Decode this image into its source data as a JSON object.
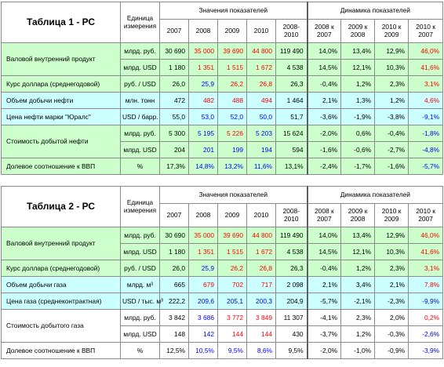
{
  "header": {
    "unit_label": "Единица измерения",
    "values_label": "Значения показателей",
    "dynamics_label": "Динамика показателей",
    "years": [
      "2007",
      "2008",
      "2009",
      "2010",
      "2008-\n2010"
    ],
    "dyn_periods": [
      "2008 к\n2007",
      "2009 к\n2008",
      "2010 к\n2009",
      "2010 к\n2007"
    ]
  },
  "colors": {
    "green_row": "#ccffcc",
    "cyan_row": "#ccffff",
    "red_value": "#ff0000",
    "blue_value": "#0000ff"
  },
  "table1": {
    "title": "Таблица 1 - РС",
    "rows": [
      {
        "name": "Валовой внутренний продукт",
        "bg": "g",
        "unit": "млрд. руб.",
        "values": [
          "30 690",
          "35 000",
          "39 690",
          "44 800",
          "119 490"
        ],
        "vc": [
          "blk",
          "red",
          "red",
          "red",
          "blk"
        ],
        "dyn": [
          "14,0%",
          "13,4%",
          "12,9%",
          "46,0%"
        ],
        "dc": [
          "blk",
          "blk",
          "blk",
          "red"
        ]
      },
      {
        "name": "",
        "bg": "g",
        "unit": "млрд. USD",
        "values": [
          "1 180",
          "1 351",
          "1 515",
          "1 672",
          "4 538"
        ],
        "vc": [
          "blk",
          "red",
          "red",
          "red",
          "blk"
        ],
        "dyn": [
          "14,5%",
          "12,1%",
          "10,3%",
          "41,6%"
        ],
        "dc": [
          "blk",
          "blk",
          "blk",
          "red"
        ]
      },
      {
        "name": "Курс доллара (среднегодовой)",
        "bg": "g",
        "unit": "руб. / USD",
        "values": [
          "26,0",
          "25,9",
          "26,2",
          "26,8",
          "26,3"
        ],
        "vc": [
          "blk",
          "blue",
          "red",
          "red",
          "blk"
        ],
        "dyn": [
          "-0,4%",
          "1,2%",
          "2,3%",
          "3,1%"
        ],
        "dc": [
          "blk",
          "blk",
          "blk",
          "red"
        ]
      },
      {
        "name": "Объем добычи нефти",
        "bg": "c",
        "unit": "млн. тонн",
        "values": [
          "472",
          "482",
          "488",
          "494",
          "1 464"
        ],
        "vc": [
          "blk",
          "red",
          "red",
          "red",
          "blk"
        ],
        "dyn": [
          "2,1%",
          "1,3%",
          "1,2%",
          "4,6%"
        ],
        "dc": [
          "blk",
          "blk",
          "blk",
          "red"
        ]
      },
      {
        "name": "Цена нефти марки \"Юралс\"",
        "bg": "c",
        "unit": "USD / барр.",
        "values": [
          "55,0",
          "53,0",
          "52,0",
          "50,0",
          "51,7"
        ],
        "vc": [
          "blk",
          "blue",
          "blue",
          "blue",
          "blk"
        ],
        "dyn": [
          "-3,6%",
          "-1,9%",
          "-3,8%",
          "-9,1%"
        ],
        "dc": [
          "blk",
          "blk",
          "blk",
          "blue"
        ]
      },
      {
        "name": "Стоимость добытой нефти",
        "bg": "g",
        "unit": "млрд. руб.",
        "values": [
          "5 300",
          "5 195",
          "5 226",
          "5 203",
          "15 624"
        ],
        "vc": [
          "blk",
          "blue",
          "red",
          "blue",
          "blk"
        ],
        "dyn": [
          "-2,0%",
          "0,6%",
          "-0,4%",
          "-1,8%"
        ],
        "dc": [
          "blk",
          "blk",
          "blk",
          "blue"
        ]
      },
      {
        "name": "",
        "bg": "g",
        "unit": "млрд. USD",
        "values": [
          "204",
          "201",
          "199",
          "194",
          "594"
        ],
        "vc": [
          "blk",
          "blue",
          "blue",
          "blue",
          "blk"
        ],
        "dyn": [
          "-1,6%",
          "-0,6%",
          "-2,7%",
          "-4,8%"
        ],
        "dc": [
          "blk",
          "blk",
          "blk",
          "blue"
        ]
      },
      {
        "name": "Долевое соотношение к ВВП",
        "bg": "g",
        "unit": "%",
        "values": [
          "17,3%",
          "14,8%",
          "13,2%",
          "11,6%",
          "13,1%"
        ],
        "vc": [
          "blk",
          "blue",
          "blue",
          "blue",
          "blk"
        ],
        "dyn": [
          "-2,4%",
          "-1,7%",
          "-1,6%",
          "-5,7%"
        ],
        "dc": [
          "blk",
          "blk",
          "blk",
          "blue"
        ]
      }
    ]
  },
  "table2": {
    "title": "Таблица 2 - РС",
    "rows": [
      {
        "name": "Валовой внутренний продукт",
        "bg": "g",
        "unit": "млрд. руб.",
        "values": [
          "30 690",
          "35 000",
          "39 690",
          "44 800",
          "119 490"
        ],
        "vc": [
          "blk",
          "red",
          "red",
          "red",
          "blk"
        ],
        "dyn": [
          "14,0%",
          "13,4%",
          "12,9%",
          "46,0%"
        ],
        "dc": [
          "blk",
          "blk",
          "blk",
          "red"
        ]
      },
      {
        "name": "",
        "bg": "g",
        "unit": "млрд. USD",
        "values": [
          "1 180",
          "1 351",
          "1 515",
          "1 672",
          "4 538"
        ],
        "vc": [
          "blk",
          "red",
          "red",
          "red",
          "blk"
        ],
        "dyn": [
          "14,5%",
          "12,1%",
          "10,3%",
          "41,6%"
        ],
        "dc": [
          "blk",
          "blk",
          "blk",
          "red"
        ]
      },
      {
        "name": "Курс доллара (среднегодовой)",
        "bg": "g",
        "unit": "руб. / USD",
        "values": [
          "26,0",
          "25,9",
          "26,2",
          "26,8",
          "26,3"
        ],
        "vc": [
          "blk",
          "blue",
          "red",
          "red",
          "blk"
        ],
        "dyn": [
          "-0,4%",
          "1,2%",
          "2,3%",
          "3,1%"
        ],
        "dc": [
          "blk",
          "blk",
          "blk",
          "red"
        ]
      },
      {
        "name": "Объем добычи газа",
        "bg": "c",
        "unit": "млрд. м³",
        "values": [
          "665",
          "679",
          "702",
          "717",
          "2 098"
        ],
        "vc": [
          "blk",
          "red",
          "red",
          "red",
          "blk"
        ],
        "dyn": [
          "2,1%",
          "3,4%",
          "2,1%",
          "7,8%"
        ],
        "dc": [
          "blk",
          "blk",
          "blk",
          "red"
        ]
      },
      {
        "name": "Цена газа (среднеконтрактная)",
        "bg": "c",
        "unit": "USD / тыс. м³",
        "values": [
          "222,2",
          "209,6",
          "205,1",
          "200,3",
          "204,9"
        ],
        "vc": [
          "blk",
          "blue",
          "blue",
          "blue",
          "blk"
        ],
        "dyn": [
          "-5,7%",
          "-2,1%",
          "-2,3%",
          "-9,9%"
        ],
        "dc": [
          "blk",
          "blk",
          "blk",
          "blue"
        ]
      },
      {
        "name": "Стоимость добытого газа",
        "bg": "w",
        "unit": "млрд. руб.",
        "values": [
          "3 842",
          "3 686",
          "3 772",
          "3 849",
          "11 307"
        ],
        "vc": [
          "blk",
          "blue",
          "red",
          "red",
          "blk"
        ],
        "dyn": [
          "-4,1%",
          "2,3%",
          "2,0%",
          "0,2%"
        ],
        "dc": [
          "blk",
          "blk",
          "blk",
          "red"
        ]
      },
      {
        "name": "",
        "bg": "w",
        "unit": "млрд. USD",
        "values": [
          "148",
          "142",
          "144",
          "144",
          "430"
        ],
        "vc": [
          "blk",
          "blue",
          "red",
          "red",
          "blk"
        ],
        "dyn": [
          "-3,7%",
          "1,2%",
          "-0,3%",
          "-2,6%"
        ],
        "dc": [
          "blk",
          "blk",
          "blk",
          "blue"
        ]
      },
      {
        "name": "Долевое соотношение к ВВП",
        "bg": "w",
        "unit": "%",
        "values": [
          "12,5%",
          "10,5%",
          "9,5%",
          "8,6%",
          "9,5%"
        ],
        "vc": [
          "blk",
          "blue",
          "blue",
          "blue",
          "blk"
        ],
        "dyn": [
          "-2,0%",
          "-1,0%",
          "-0,9%",
          "-3,9%"
        ],
        "dc": [
          "blk",
          "blk",
          "blk",
          "blue"
        ]
      }
    ]
  }
}
